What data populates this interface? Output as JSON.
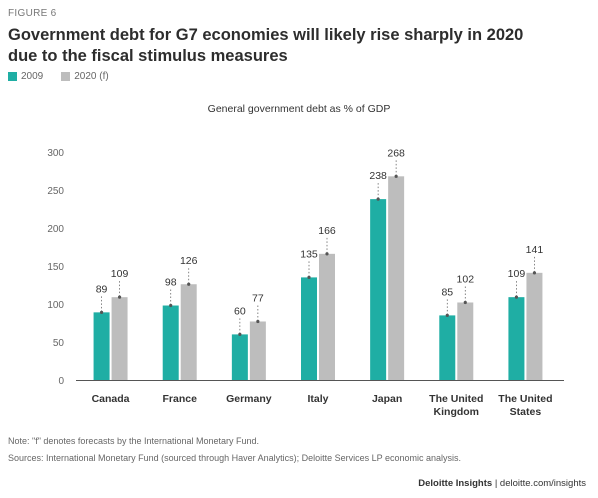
{
  "figure_label": "FIGURE 6",
  "title": "Government debt for G7 economies will likely rise sharply in 2020 due to the fiscal stimulus measures",
  "legend": [
    {
      "label": "2009",
      "color": "#1faea4"
    },
    {
      "label": "2020 (f)",
      "color": "#bdbdbd"
    }
  ],
  "chart_data": {
    "type": "bar",
    "title": "General government debt as % of GDP",
    "categories": [
      "Canada",
      "France",
      "Germany",
      "Italy",
      "Japan",
      "The United Kingdom",
      "The United States"
    ],
    "category_lines": [
      [
        "Canada"
      ],
      [
        "France"
      ],
      [
        "Germany"
      ],
      [
        "Italy"
      ],
      [
        "Japan"
      ],
      [
        "The United",
        "Kingdom"
      ],
      [
        "The United",
        "States"
      ]
    ],
    "series": [
      {
        "name": "2009",
        "values": [
          89,
          98,
          60,
          135,
          238,
          85,
          109
        ],
        "color": "#1faea4"
      },
      {
        "name": "2020 (f)",
        "values": [
          109,
          126,
          77,
          166,
          268,
          102,
          141
        ],
        "color": "#bdbdbd"
      }
    ],
    "yticks": [
      0,
      50,
      100,
      150,
      200,
      250,
      300
    ],
    "ylim": [
      0,
      300
    ],
    "grid": false,
    "legend_placement": "top-left"
  },
  "notes": [
    "Note: \"f\" denotes forecasts by the International Monetary Fund.",
    "Sources: International Monetary Fund (sourced through Haver Analytics); Deloitte Services LP economic analysis."
  ],
  "footer": {
    "brand": "Deloitte Insights",
    "url": "deloitte.com/insights"
  }
}
